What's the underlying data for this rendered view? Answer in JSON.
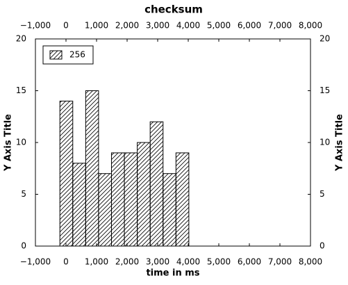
{
  "chart_data": {
    "type": "histogram",
    "title": "checksum",
    "x_label": "time in ms",
    "y_label": "Y Axis Title",
    "series": [
      {
        "name": "256",
        "color": "#000000",
        "bins": [
          -200,
          222,
          644,
          1066,
          1488,
          1910,
          2332,
          2754,
          3176,
          3598,
          4020
        ],
        "values": [
          14,
          8,
          15,
          7,
          9,
          9,
          10,
          12,
          7,
          9
        ]
      }
    ],
    "xlim": [
      -1000,
      8000
    ],
    "xticks": [
      {
        "value": -1000,
        "label": "−1,000"
      },
      0,
      {
        "value": 1000,
        "label": "1,000"
      },
      {
        "value": 2000,
        "label": "2,000"
      },
      {
        "value": 3000,
        "label": "3,000"
      },
      {
        "value": 4000,
        "label": "4,000"
      },
      {
        "value": 5000,
        "label": "5,000"
      },
      {
        "value": 6000,
        "label": "6,000"
      },
      {
        "value": 7000,
        "label": "7,000"
      },
      {
        "value": 8000,
        "label": "8,000"
      }
    ],
    "ylim": [
      0,
      20
    ],
    "yticks": [
      0,
      5,
      10,
      15,
      20
    ],
    "y2lim": [
      0,
      20
    ],
    "y2ticks": [
      0,
      5,
      10,
      15,
      20
    ],
    "legend": "upper left",
    "grid": false
  }
}
